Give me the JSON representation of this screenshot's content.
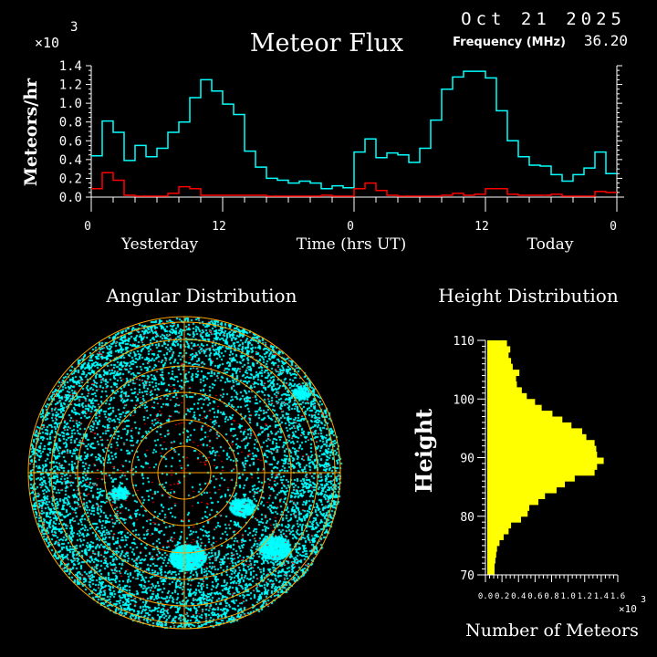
{
  "header": {
    "date": "Oct 21 2025",
    "frequency_label": "Frequency (MHz)",
    "frequency_value": "36.20"
  },
  "chart_data": [
    {
      "type": "line",
      "style": "step",
      "title": "Meteor Flux",
      "ylabel": "Meteors/hr",
      "y_multiplier": "x10^3",
      "y_multiplier_base": "×10",
      "y_multiplier_exp": "3",
      "xlabel": "Time (hrs UT)",
      "x_group_labels": [
        "Yesterday",
        "Today"
      ],
      "x_tick_labels": [
        "0",
        "12",
        "0",
        "12",
        "0"
      ],
      "y_tick_labels": [
        "0.0",
        "0.2",
        "0.4",
        "0.6",
        "0.8",
        "1.0",
        "1.2",
        "1.4"
      ],
      "xlim": [
        0,
        48
      ],
      "ylim": [
        0,
        1.4
      ],
      "bin_hours": 1,
      "series": [
        {
          "color": "#00ffff",
          "values": [
            0.44,
            0.81,
            0.69,
            0.39,
            0.55,
            0.43,
            0.52,
            0.69,
            0.8,
            1.06,
            1.25,
            1.13,
            0.99,
            0.88,
            0.49,
            0.32,
            0.2,
            0.18,
            0.15,
            0.17,
            0.15,
            0.09,
            0.12,
            0.1,
            0.48,
            0.62,
            0.42,
            0.47,
            0.45,
            0.37,
            0.52,
            0.82,
            1.15,
            1.28,
            1.34,
            1.34,
            1.27,
            0.92,
            0.6,
            0.43,
            0.34,
            0.33,
            0.24,
            0.17,
            0.24,
            0.31,
            0.48,
            0.25
          ]
        },
        {
          "color": "#ff0000",
          "values": [
            0.09,
            0.26,
            0.18,
            0.02,
            0.01,
            0.01,
            0.01,
            0.04,
            0.11,
            0.09,
            0.02,
            0.02,
            0.02,
            0.02,
            0.02,
            0.02,
            0.01,
            0.01,
            0.01,
            0.01,
            0.01,
            0.02,
            0.01,
            0.01,
            0.09,
            0.15,
            0.07,
            0.02,
            0.01,
            0.01,
            0.01,
            0.01,
            0.02,
            0.04,
            0.02,
            0.03,
            0.09,
            0.09,
            0.03,
            0.02,
            0.02,
            0.02,
            0.03,
            0.01,
            0.01,
            0.01,
            0.06,
            0.05
          ]
        }
      ]
    },
    {
      "type": "scatter",
      "style": "polar-sky-map",
      "title": "Angular Distribution",
      "colors": {
        "points": "#00ffff",
        "highlight": "#ff0000",
        "grid": "#ffa500"
      }
    },
    {
      "type": "bar",
      "orientation": "horizontal",
      "title": "Height Distribution",
      "ylabel": "Height",
      "xlabel": "Number of Meteors",
      "x_multiplier_base": "×10",
      "x_multiplier_exp": "3",
      "xlim": [
        0,
        1.6
      ],
      "ylim": [
        70,
        110
      ],
      "y_tick_labels": [
        "70",
        "80",
        "90",
        "100",
        "110"
      ],
      "x_tick_labels": [
        "0.0",
        "0.2",
        "0.4",
        "0.6",
        "0.8",
        "1.0",
        "1.2",
        "1.4",
        "1.6"
      ],
      "color": "#ffff00",
      "bin_heights": [
        70,
        71,
        72,
        73,
        74,
        75,
        76,
        77,
        78,
        79,
        80,
        81,
        82,
        83,
        84,
        85,
        86,
        87,
        88,
        89,
        90,
        91,
        92,
        93,
        94,
        95,
        96,
        97,
        98,
        99,
        100,
        101,
        102,
        103,
        104,
        105,
        106,
        107,
        108,
        109
      ],
      "values": [
        0.11,
        0.11,
        0.12,
        0.13,
        0.14,
        0.17,
        0.22,
        0.28,
        0.31,
        0.43,
        0.51,
        0.53,
        0.64,
        0.72,
        0.86,
        0.96,
        1.08,
        1.32,
        1.35,
        1.43,
        1.35,
        1.34,
        1.32,
        1.22,
        1.17,
        1.04,
        0.93,
        0.81,
        0.68,
        0.6,
        0.5,
        0.44,
        0.38,
        0.37,
        0.41,
        0.33,
        0.31,
        0.28,
        0.3,
        0.26
      ]
    }
  ]
}
